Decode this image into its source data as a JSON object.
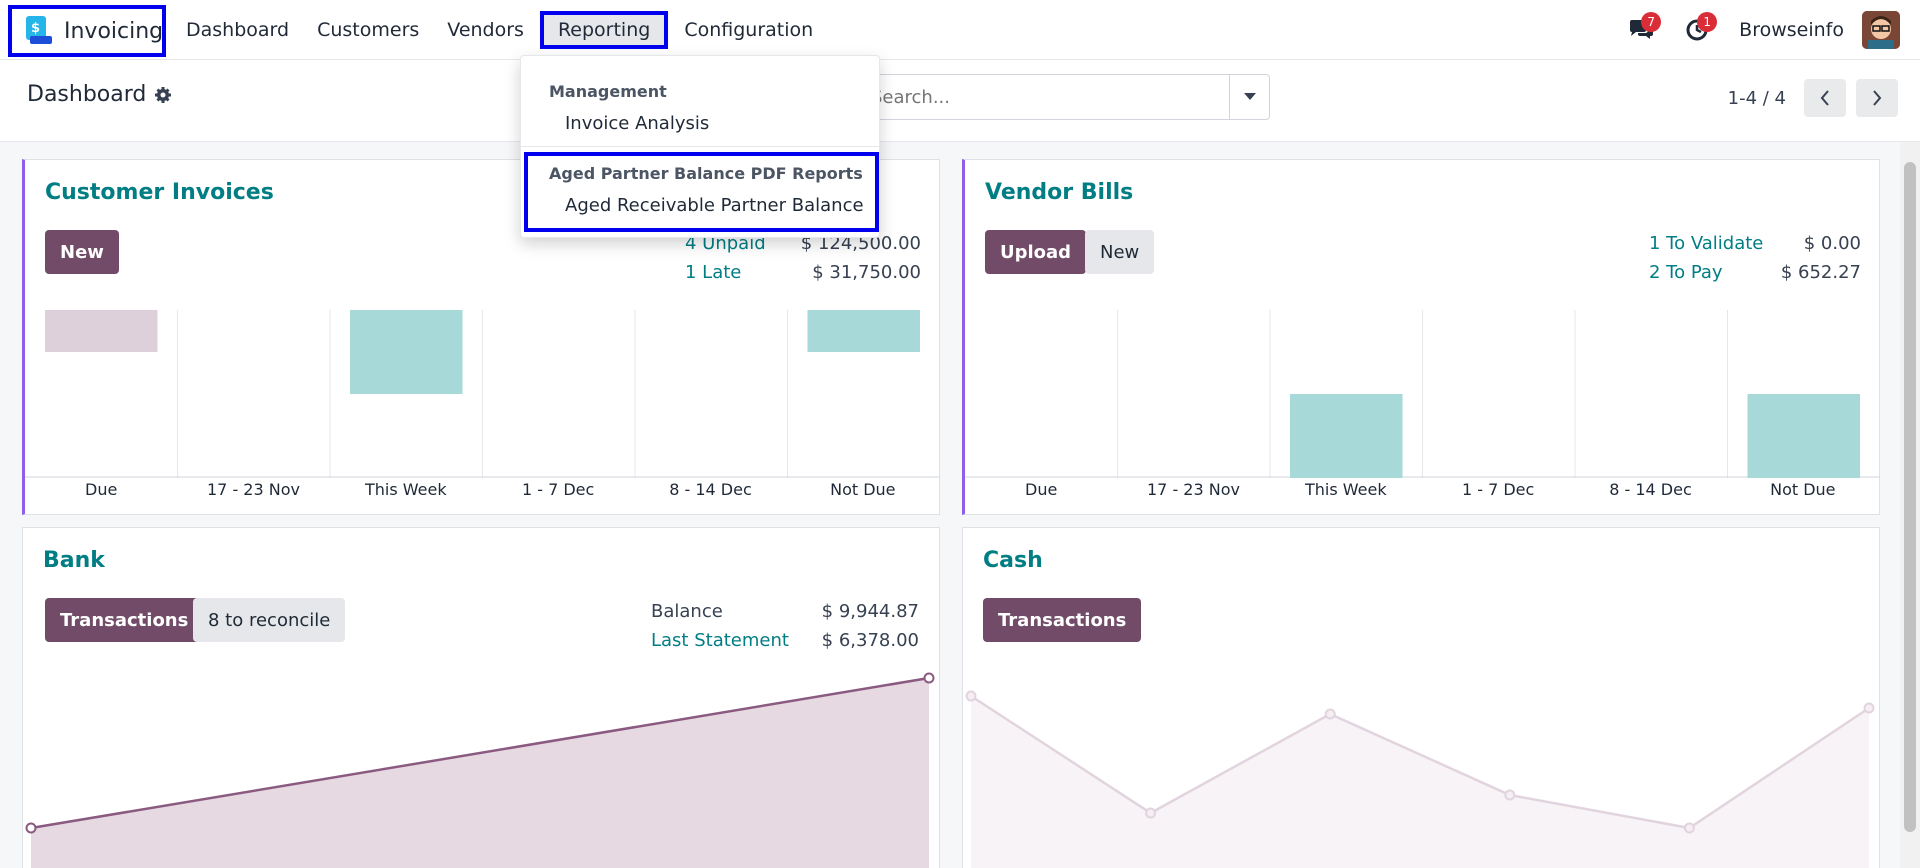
{
  "app": {
    "name": "Invoicing"
  },
  "nav": {
    "items": [
      {
        "label": "Dashboard"
      },
      {
        "label": "Customers"
      },
      {
        "label": "Vendors"
      },
      {
        "label": "Reporting"
      },
      {
        "label": "Configuration"
      }
    ]
  },
  "systray": {
    "messages_count": "7",
    "activities_count": "1",
    "user_name": "Browseinfo"
  },
  "control_panel": {
    "title": "Dashboard",
    "search_placeholder": "Search...",
    "pager": "1-4 / 4"
  },
  "reporting_menu": {
    "section1_header": "Management",
    "section1_item": "Invoice Analysis",
    "section2_header": "Aged Partner Balance PDF Reports",
    "section2_item": "Aged Receivable Partner Balance"
  },
  "customer_invoices": {
    "title": "Customer Invoices",
    "new_label": "New",
    "stats": [
      {
        "label": "4 Unpaid",
        "value": "$ 124,500.00"
      },
      {
        "label": "1 Late",
        "value": "$ 31,750.00"
      }
    ]
  },
  "vendor_bills": {
    "title": "Vendor Bills",
    "upload_label": "Upload",
    "new_label": "New",
    "stats": [
      {
        "label": "1 To Validate",
        "value": "$ 0.00"
      },
      {
        "label": "2 To Pay",
        "value": "$ 652.27"
      }
    ]
  },
  "bank": {
    "title": "Bank",
    "transactions_label": "Transactions",
    "reconcile_label": "8 to reconcile",
    "stats": [
      {
        "label": "Balance",
        "value": "$ 9,944.87"
      },
      {
        "label": "Last Statement",
        "value": "$ 6,378.00"
      }
    ]
  },
  "cash": {
    "title": "Cash",
    "transactions_label": "Transactions"
  },
  "chart_data": [
    {
      "type": "bar",
      "title": "",
      "categories": [
        "Due",
        "17 - 23 Nov",
        "This Week",
        "1 - 7 Dec",
        "8 - 14 Dec",
        "Not Due"
      ],
      "series": [
        {
          "values": [
            -0.25,
            0,
            -0.5,
            0,
            0,
            -0.25
          ]
        }
      ],
      "ylim": [
        -1,
        0
      ],
      "colors": [
        "#ddd0db",
        "#a6d9d8",
        "#a6d9d8",
        "#a6d9d8",
        "#a6d9d8",
        "#a6d9d8"
      ]
    },
    {
      "type": "bar",
      "title": "",
      "categories": [
        "Due",
        "17 - 23 Nov",
        "This Week",
        "1 - 7 Dec",
        "8 - 14 Dec",
        "Not Due"
      ],
      "series": [
        {
          "values": [
            0,
            0,
            0.5,
            0,
            0,
            0.5
          ]
        }
      ],
      "ylim": [
        0,
        1
      ],
      "colors": [
        "#a6d9d8",
        "#a6d9d8",
        "#a6d9d8",
        "#a6d9d8",
        "#a6d9d8",
        "#a6d9d8"
      ]
    },
    {
      "type": "area",
      "title": "",
      "x": [
        0,
        1
      ],
      "values": [
        0,
        1
      ],
      "ylim": [
        0,
        1
      ],
      "color": "#8a5a80"
    },
    {
      "type": "area",
      "title": "",
      "x": [
        0,
        1,
        2,
        3,
        4,
        5
      ],
      "values": [
        0.88,
        0.1,
        0.76,
        0.22,
        0,
        0.8
      ],
      "ylim": [
        0,
        1
      ],
      "color": "#e2d4de"
    }
  ]
}
